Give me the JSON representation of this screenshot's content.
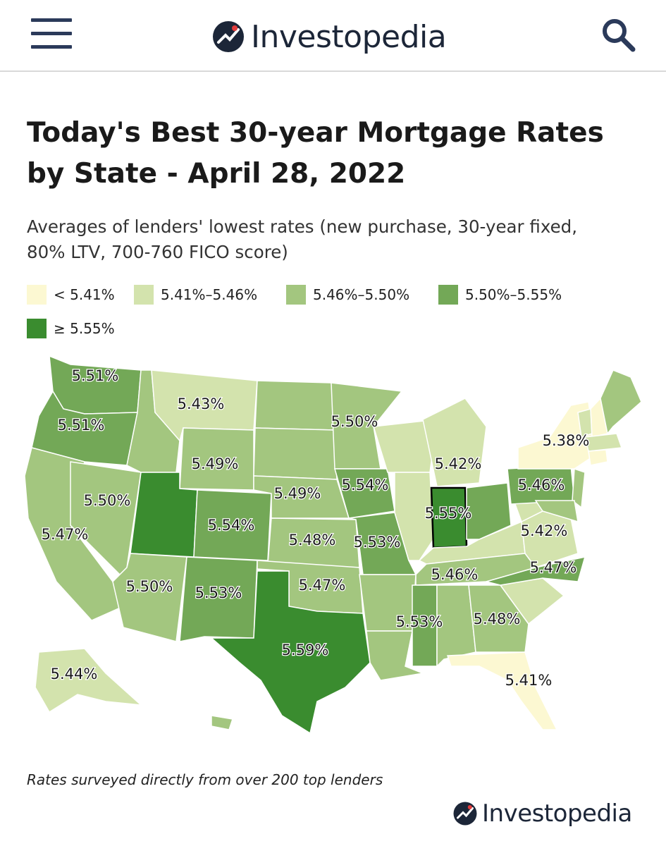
{
  "header": {
    "menu_icon": "hamburger-menu-icon",
    "brand": "Investopedia",
    "brand_icon": "investopedia-logo-icon",
    "search_icon": "search-icon"
  },
  "title": "Today's Best 30-year Mortgage Rates by State - April 28, 2022",
  "title_lines": [
    "Today's Best 30-year Mortgage Rates",
    "by State - April 28, 2022"
  ],
  "subtitle_lines": [
    "Averages of lenders' lowest rates (new purchase, 30-year fixed,",
    "80% LTV, 700-760 FICO score)"
  ],
  "legend": [
    {
      "label": "< 5.41%",
      "color": "#fcf8d2"
    },
    {
      "label": "5.41%–5.46%",
      "color": "#d3e3ad"
    },
    {
      "label": "5.46%–5.50%",
      "color": "#a3c67f"
    },
    {
      "label": "5.50%–5.55%",
      "color": "#73a857"
    },
    {
      "label": "≥ 5.55%",
      "color": "#3a8c2f"
    }
  ],
  "chart_data": {
    "type": "choropleth",
    "region": "United States",
    "unit": "%",
    "labeled_values": [
      {
        "state": "Washington",
        "value": "5.51%"
      },
      {
        "state": "Oregon",
        "value": "5.51%"
      },
      {
        "state": "Montana",
        "value": "5.43%"
      },
      {
        "state": "Minnesota",
        "value": "5.50%"
      },
      {
        "state": "New York",
        "value": "5.38%"
      },
      {
        "state": "Michigan",
        "value": "5.42%"
      },
      {
        "state": "Wyoming",
        "value": "5.49%"
      },
      {
        "state": "Iowa",
        "value": "5.54%"
      },
      {
        "state": "Pennsylvania",
        "value": "5.46%"
      },
      {
        "state": "Nevada",
        "value": "5.50%"
      },
      {
        "state": "Nebraska",
        "value": "5.49%"
      },
      {
        "state": "Indiana",
        "value": "5.55%"
      },
      {
        "state": "Colorado",
        "value": "5.54%"
      },
      {
        "state": "California",
        "value": "5.47%"
      },
      {
        "state": "Virginia",
        "value": "5.42%"
      },
      {
        "state": "Kansas",
        "value": "5.48%"
      },
      {
        "state": "Missouri",
        "value": "5.53%"
      },
      {
        "state": "Arizona",
        "value": "5.50%"
      },
      {
        "state": "Oklahoma",
        "value": "5.47%"
      },
      {
        "state": "Tennessee",
        "value": "5.46%"
      },
      {
        "state": "North Carolina",
        "value": "5.47%"
      },
      {
        "state": "New Mexico",
        "value": "5.53%"
      },
      {
        "state": "Mississippi",
        "value": "5.53%"
      },
      {
        "state": "Georgia",
        "value": "5.48%"
      },
      {
        "state": "Texas",
        "value": "5.59%"
      },
      {
        "state": "Alaska",
        "value": "5.44%"
      },
      {
        "state": "Florida",
        "value": "5.41%"
      }
    ],
    "highlighted_state": "Indiana"
  },
  "footnote": "Rates surveyed directly from over 200 top lenders",
  "footer_brand": "Investopedia"
}
